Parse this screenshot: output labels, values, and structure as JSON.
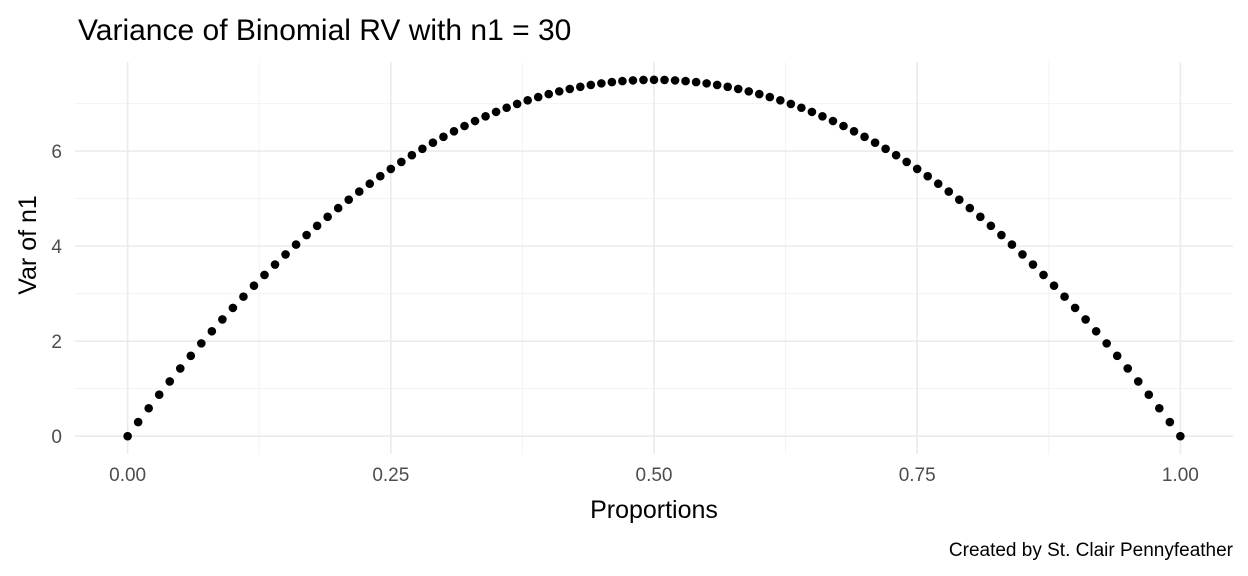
{
  "chart_data": {
    "type": "scatter",
    "title": "Variance of Binomial RV with n1 = 30",
    "xlabel": "Proportions",
    "ylabel": "Var of n1",
    "caption": "Created by St. Clair Pennyfeather",
    "n": 30,
    "xlim": [
      -0.05,
      1.05
    ],
    "ylim": [
      -0.375,
      7.875
    ],
    "x_ticks": [
      0,
      0.25,
      0.5,
      0.75,
      1
    ],
    "x_tick_labels": [
      "0.00",
      "0.25",
      "0.50",
      "0.75",
      "1.00"
    ],
    "x_minor_ticks": [
      0.125,
      0.375,
      0.625,
      0.875
    ],
    "y_ticks": [
      0,
      2,
      4,
      6
    ],
    "y_tick_labels": [
      "0",
      "2",
      "4",
      "6"
    ],
    "y_minor_ticks": [
      1,
      3,
      5,
      7
    ],
    "grid": true,
    "point_color": "#000000",
    "x": [
      0,
      0.01,
      0.02,
      0.03,
      0.04,
      0.05,
      0.06,
      0.07,
      0.08,
      0.09,
      0.1,
      0.11,
      0.12,
      0.13,
      0.14,
      0.15,
      0.16,
      0.17,
      0.18,
      0.19,
      0.2,
      0.21,
      0.22,
      0.23,
      0.24,
      0.25,
      0.26,
      0.27,
      0.28,
      0.29,
      0.3,
      0.31,
      0.32,
      0.33,
      0.34,
      0.35,
      0.36,
      0.37,
      0.38,
      0.39,
      0.4,
      0.41,
      0.42,
      0.43,
      0.44,
      0.45,
      0.46,
      0.47,
      0.48,
      0.49,
      0.5,
      0.51,
      0.52,
      0.53,
      0.54,
      0.55,
      0.56,
      0.57,
      0.58,
      0.59,
      0.6,
      0.61,
      0.62,
      0.63,
      0.64,
      0.65,
      0.66,
      0.67,
      0.68,
      0.69,
      0.7,
      0.71,
      0.72,
      0.73,
      0.74,
      0.75,
      0.76,
      0.77,
      0.78,
      0.79,
      0.8,
      0.81,
      0.82,
      0.83,
      0.84,
      0.85,
      0.86,
      0.87,
      0.88,
      0.89,
      0.9,
      0.91,
      0.92,
      0.93,
      0.94,
      0.95,
      0.96,
      0.97,
      0.98,
      0.99,
      1
    ],
    "y": [
      0,
      0.297,
      0.588,
      0.873,
      1.152,
      1.425,
      1.692,
      1.953,
      2.208,
      2.457,
      2.7,
      2.937,
      3.168,
      3.393,
      3.612,
      3.825,
      4.032,
      4.233,
      4.428,
      4.617,
      4.8,
      4.977,
      5.148,
      5.313,
      5.472,
      5.625,
      5.772,
      5.913,
      6.048,
      6.177,
      6.3,
      6.417,
      6.528,
      6.633,
      6.732,
      6.825,
      6.912,
      6.993,
      7.068,
      7.137,
      7.2,
      7.257,
      7.308,
      7.353,
      7.392,
      7.425,
      7.452,
      7.473,
      7.488,
      7.497,
      7.5,
      7.497,
      7.488,
      7.473,
      7.452,
      7.425,
      7.392,
      7.353,
      7.308,
      7.257,
      7.2,
      7.137,
      7.068,
      6.993,
      6.912,
      6.825,
      6.732,
      6.633,
      6.528,
      6.417,
      6.3,
      6.177,
      6.048,
      5.913,
      5.772,
      5.625,
      5.472,
      5.313,
      5.148,
      4.977,
      4.8,
      4.617,
      4.428,
      4.233,
      4.032,
      3.825,
      3.612,
      3.393,
      3.168,
      2.937,
      2.7,
      2.457,
      2.208,
      1.953,
      1.692,
      1.425,
      1.152,
      0.873,
      0.588,
      0.297,
      0
    ]
  }
}
